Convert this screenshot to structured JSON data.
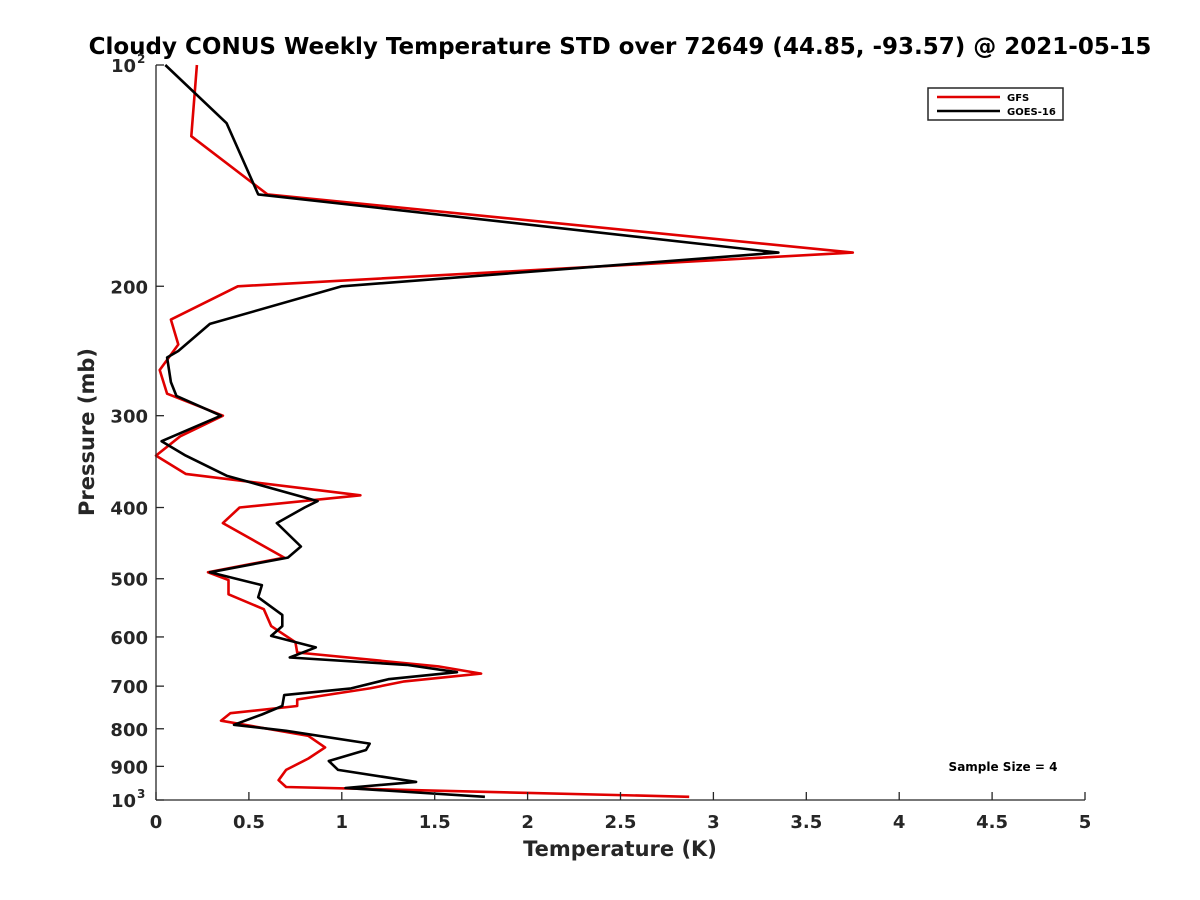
{
  "chart_data": {
    "type": "line",
    "title": "Cloudy CONUS Weekly Temperature STD over 72649 (44.85, -93.57) @ 2021-05-15",
    "xlabel": "Temperature (K)",
    "ylabel": "Pressure (mb)",
    "xlim": [
      0,
      5
    ],
    "ylim": [
      100,
      1000
    ],
    "y_scale": "log",
    "y_reversed": true,
    "x_ticks": [
      "0",
      "0.5",
      "1",
      "1.5",
      "2",
      "2.5",
      "3",
      "3.5",
      "4",
      "4.5",
      "5"
    ],
    "y_ticks": [
      {
        "value": 100,
        "label": "10",
        "sup": "2"
      },
      {
        "value": 200,
        "label": "200",
        "sup": ""
      },
      {
        "value": 300,
        "label": "300",
        "sup": ""
      },
      {
        "value": 400,
        "label": "400",
        "sup": ""
      },
      {
        "value": 500,
        "label": "500",
        "sup": ""
      },
      {
        "value": 600,
        "label": "600",
        "sup": ""
      },
      {
        "value": 700,
        "label": "700",
        "sup": ""
      },
      {
        "value": 800,
        "label": "800",
        "sup": ""
      },
      {
        "value": 900,
        "label": "900",
        "sup": ""
      },
      {
        "value": 1000,
        "label": "10",
        "sup": "3"
      }
    ],
    "grid": false,
    "legend_position": "top-right",
    "annotation": "Sample Size = 4",
    "series": [
      {
        "name": "GFS",
        "color": "#e00000",
        "points": [
          [
            0.22,
            100
          ],
          [
            0.19,
            125
          ],
          [
            0.6,
            150
          ],
          [
            3.75,
            180
          ],
          [
            0.44,
            200
          ],
          [
            0.08,
            222
          ],
          [
            0.12,
            240
          ],
          [
            0.02,
            260
          ],
          [
            0.06,
            280
          ],
          [
            0.36,
            300
          ],
          [
            0.13,
            320
          ],
          [
            0.0,
            340
          ],
          [
            0.16,
            360
          ],
          [
            1.1,
            385
          ],
          [
            0.45,
            400
          ],
          [
            0.36,
            420
          ],
          [
            0.69,
            468
          ],
          [
            0.28,
            490
          ],
          [
            0.39,
            502
          ],
          [
            0.39,
            525
          ],
          [
            0.58,
            550
          ],
          [
            0.62,
            580
          ],
          [
            0.75,
            610
          ],
          [
            0.76,
            630
          ],
          [
            1.52,
            658
          ],
          [
            1.75,
            673
          ],
          [
            1.33,
            690
          ],
          [
            1.15,
            705
          ],
          [
            0.76,
            730
          ],
          [
            0.76,
            745
          ],
          [
            0.4,
            762
          ],
          [
            0.35,
            780
          ],
          [
            0.82,
            818
          ],
          [
            0.91,
            848
          ],
          [
            0.82,
            878
          ],
          [
            0.7,
            910
          ],
          [
            0.66,
            940
          ],
          [
            0.7,
            960
          ],
          [
            2.87,
            990
          ]
        ]
      },
      {
        "name": "GOES-16",
        "color": "#000000",
        "points": [
          [
            0.05,
            100
          ],
          [
            0.38,
            120
          ],
          [
            0.55,
            150
          ],
          [
            3.35,
            180
          ],
          [
            1.0,
            200
          ],
          [
            0.29,
            225
          ],
          [
            0.12,
            245
          ],
          [
            0.06,
            250
          ],
          [
            0.08,
            270
          ],
          [
            0.11,
            282
          ],
          [
            0.35,
            300
          ],
          [
            0.03,
            325
          ],
          [
            0.16,
            340
          ],
          [
            0.38,
            362
          ],
          [
            0.87,
            392
          ],
          [
            0.8,
            400
          ],
          [
            0.65,
            420
          ],
          [
            0.78,
            452
          ],
          [
            0.71,
            468
          ],
          [
            0.29,
            490
          ],
          [
            0.57,
            510
          ],
          [
            0.55,
            530
          ],
          [
            0.68,
            560
          ],
          [
            0.68,
            580
          ],
          [
            0.62,
            598
          ],
          [
            0.86,
            620
          ],
          [
            0.72,
            640
          ],
          [
            1.35,
            655
          ],
          [
            1.62,
            670
          ],
          [
            1.25,
            685
          ],
          [
            1.05,
            705
          ],
          [
            0.69,
            720
          ],
          [
            0.68,
            745
          ],
          [
            0.57,
            765
          ],
          [
            0.42,
            790
          ],
          [
            0.7,
            805
          ],
          [
            1.15,
            838
          ],
          [
            1.13,
            855
          ],
          [
            0.93,
            885
          ],
          [
            0.98,
            910
          ],
          [
            1.4,
            945
          ],
          [
            1.02,
            963
          ],
          [
            1.77,
            990
          ]
        ]
      }
    ]
  }
}
